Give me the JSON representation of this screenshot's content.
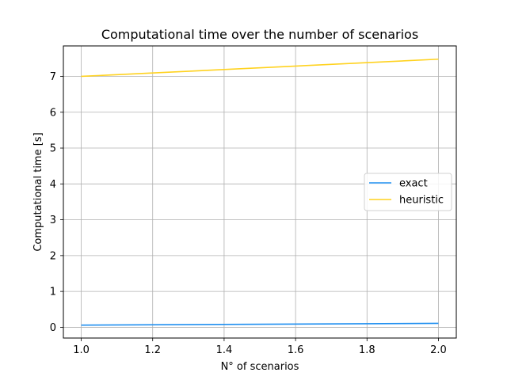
{
  "chart_data": {
    "type": "line",
    "title": "Computational time over the number of scenarios",
    "xlabel": "N° of scenarios",
    "ylabel": "Computational time [s]",
    "xlim": [
      0.95,
      2.05
    ],
    "ylim": [
      -0.3,
      7.85
    ],
    "xticks": [
      1.0,
      1.2,
      1.4,
      1.6,
      1.8,
      2.0
    ],
    "xtick_labels": [
      "1.0",
      "1.2",
      "1.4",
      "1.6",
      "1.8",
      "2.0"
    ],
    "yticks": [
      0,
      1,
      2,
      3,
      4,
      5,
      6,
      7
    ],
    "ytick_labels": [
      "0",
      "1",
      "2",
      "3",
      "4",
      "5",
      "6",
      "7"
    ],
    "grid": true,
    "legend_position": "center-right",
    "series": [
      {
        "name": "exact",
        "color": "#1f8ff0",
        "x": [
          1.0,
          2.0
        ],
        "y": [
          0.06,
          0.11
        ]
      },
      {
        "name": "heuristic",
        "color": "#ffd21f",
        "x": [
          1.0,
          2.0
        ],
        "y": [
          7.0,
          7.48
        ]
      }
    ]
  }
}
